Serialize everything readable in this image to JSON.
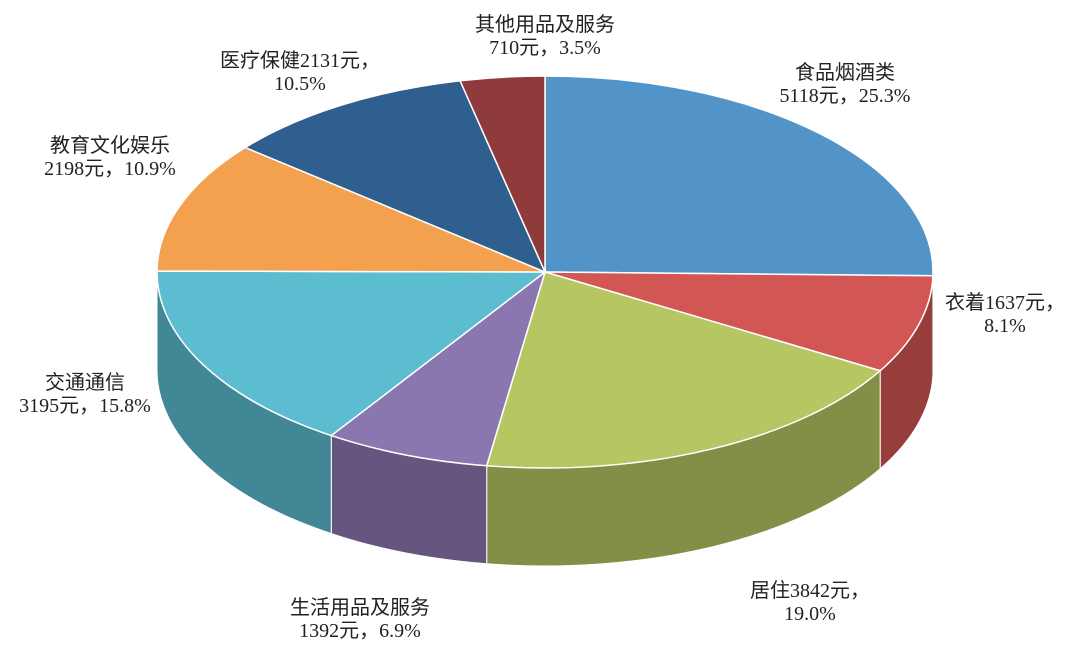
{
  "chart_data": {
    "type": "pie3d",
    "categories": [
      "食品烟酒类",
      "衣着",
      "居住",
      "生活用品及服务",
      "交通通信",
      "教育文化娱乐",
      "医疗保健",
      "其他用品及服务"
    ],
    "values": [
      5118,
      1637,
      3842,
      1392,
      3195,
      2198,
      2131,
      710
    ],
    "value_labels": [
      "5118元，25.3%",
      "1637元，8.1%",
      "3842元，19.0%",
      "1392元，6.9%",
      "3195元，15.8%",
      "2198元，10.9%",
      "2131元，10.5%",
      "710元，3.5%"
    ],
    "colors": [
      "#5294c8",
      "#d25654",
      "#b6c662",
      "#8b77af",
      "#5cbcd0",
      "#f4a14f",
      "#2e5f8f",
      "#8f3b3b"
    ]
  }
}
